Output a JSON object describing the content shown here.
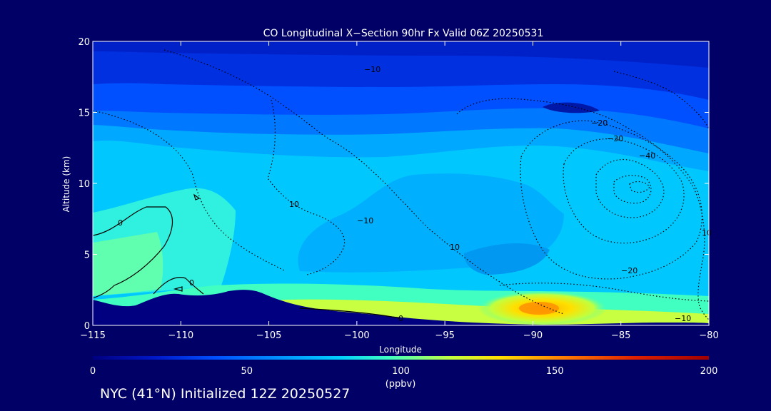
{
  "chart_data": {
    "type": "heatmap",
    "title": "CO Longitudinal X−Section 90hr  Fx Valid 06Z 20250531",
    "xlabel": "Longitude",
    "ylabel": "Altitude (km)",
    "xlim": [
      -115,
      -80
    ],
    "ylim": [
      0,
      20
    ],
    "x_ticks": [
      -115,
      -110,
      -105,
      -100,
      -95,
      -90,
      -85,
      -80
    ],
    "x_tick_labels": [
      "−115",
      "−110",
      "−105",
      "−100",
      "−95",
      "−90",
      "−85",
      "−80"
    ],
    "y_ticks": [
      0,
      5,
      10,
      15,
      20
    ],
    "y_tick_labels": [
      "0",
      "5",
      "10",
      "15",
      "20"
    ],
    "grid": false,
    "colorbar": {
      "min": 0,
      "max": 200,
      "ticks": [
        0,
        50,
        100,
        150,
        200
      ],
      "tick_labels": [
        "0",
        "50",
        "100",
        "150",
        "200"
      ],
      "unit": "(ppbv)",
      "colors": [
        "#000080",
        "#0018c8",
        "#0050ff",
        "#0090ff",
        "#00d0ff",
        "#40ffc0",
        "#c0ff40",
        "#ffe000",
        "#ff8000",
        "#e02000",
        "#a00000"
      ]
    },
    "contours": [
      {
        "value": 0,
        "label": "0",
        "style": "solid"
      },
      {
        "value": -10,
        "label": "−10",
        "style": "dotted"
      },
      {
        "value": -20,
        "label": "−20",
        "style": "dotted"
      },
      {
        "value": -30,
        "label": "−30",
        "style": "dotted"
      },
      {
        "value": -40,
        "label": "−40",
        "style": "dotted"
      }
    ],
    "co_field": {
      "description_values": [
        {
          "region": "stratosphere 17-20 km",
          "ppbv": 35
        },
        {
          "region": "upper troposphere 13-16 km",
          "ppbv": 55
        },
        {
          "region": "mid troposphere 4-12 km",
          "ppbv": 80
        },
        {
          "region": "boundary layer west",
          "ppbv": 90
        },
        {
          "region": "boundary layer near -89 to -90",
          "ppbv": 135
        }
      ]
    }
  },
  "footer": "NYC (41°N) Initialized 12Z 20250527"
}
